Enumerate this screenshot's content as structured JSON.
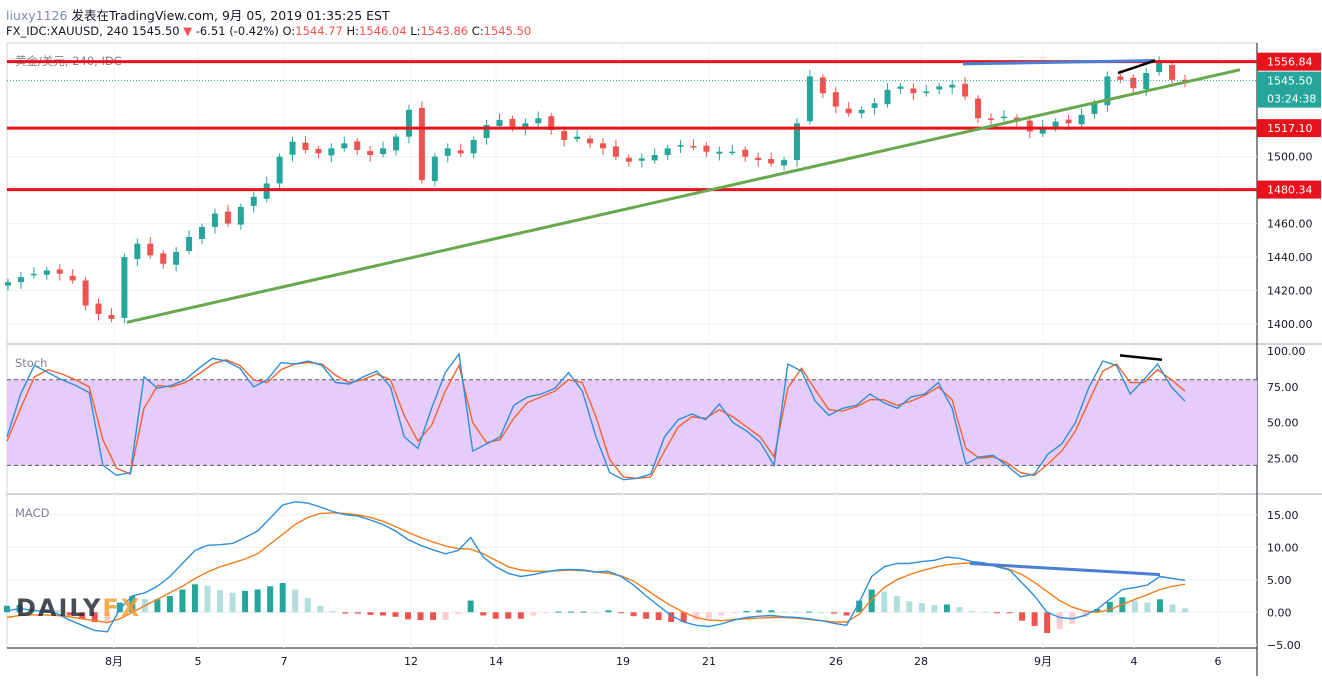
{
  "header": {
    "user": "liuxy1126",
    "published": "发表在TradingView.com, 9月 05, 2019 01:35:25 EST",
    "symbol_line": "FX_IDC:XAUUSD, 240",
    "last": "1545.50",
    "change_arrow": "▼",
    "change": "-6.51 (-0.42%)",
    "o_label": "O:",
    "o_value": "1544.77",
    "h_label": "H:",
    "h_value": "1546.04",
    "l_label": "L:",
    "l_value": "1543.86",
    "c_label": "C:",
    "c_value": "1545.50"
  },
  "watermark": {
    "left": "DAILY",
    "right": "FX"
  },
  "colors": {
    "up": "#26a69a",
    "down": "#ef5350",
    "level": "#e8121c",
    "trend": "#6aa84f",
    "blue_line": "#4a7fd6",
    "stoch_k": "#2f8fd8",
    "stoch_d": "#f4632e",
    "stoch_band": "#e6ccfa",
    "macd_line": "#2f8fd8",
    "signal_line": "#f07f1e"
  },
  "chart_data": [
    {
      "type": "candlestick",
      "title": "黄金/美元, 240, IDC",
      "ylim": [
        1388,
        1568
      ],
      "yticks": [
        "1400.00",
        "1420.00",
        "1440.00",
        "1460.00",
        "1480.00",
        "1500.00"
      ],
      "x_tick_labels": [
        "8月",
        "5",
        "7",
        "12",
        "14",
        "19",
        "21",
        "26",
        "28",
        "9月",
        "4",
        "6"
      ],
      "horizontal_levels": [
        {
          "label": "1556.84",
          "value": 1556.84
        },
        {
          "label": "1517.10",
          "value": 1517.1
        },
        {
          "label": "1480.34",
          "value": 1480.34
        }
      ],
      "last_price_label": "1545.50",
      "countdown_label": "03:24:38",
      "trendline": {
        "from": [
          "8月 1",
          1401
        ],
        "to": [
          "9月 5",
          1552
        ]
      },
      "close_path": [
        1425,
        1428,
        1430,
        1432,
        1430,
        1426,
        1411,
        1406,
        1403,
        1440,
        1448,
        1441,
        1436,
        1443,
        1452,
        1458,
        1466,
        1460,
        1470,
        1476,
        1484,
        1500,
        1509,
        1504,
        1502,
        1505,
        1508,
        1504,
        1501,
        1505,
        1512,
        1528,
        1486,
        1500,
        1505,
        1502,
        1510,
        1519,
        1522,
        1518,
        1520,
        1523,
        1516,
        1510,
        1512,
        1508,
        1505,
        1500,
        1497,
        1499,
        1501,
        1505,
        1507,
        1506,
        1503,
        1503,
        1503,
        1500,
        1498,
        1496,
        1498,
        1520,
        1548,
        1538,
        1530,
        1526,
        1528,
        1532,
        1540,
        1542,
        1538,
        1539,
        1542,
        1543,
        1536,
        1523,
        1522,
        1524,
        1521,
        1515,
        1518,
        1521,
        1520,
        1525,
        1532,
        1548,
        1546,
        1541,
        1550,
        1556,
        1546,
        1545.5
      ]
    },
    {
      "type": "line",
      "title": "Stoch",
      "ylim": [
        0,
        105
      ],
      "yticks": [
        "25.00",
        "50.00",
        "75.00",
        "100.00"
      ],
      "band": [
        20,
        80
      ],
      "series": [
        {
          "values": [
            40,
            70,
            90,
            85,
            80,
            76,
            71,
            20,
            13,
            15,
            82,
            74,
            76,
            80,
            88,
            95,
            93,
            88,
            75,
            80,
            92,
            91,
            93,
            90,
            78,
            77,
            82,
            86,
            75,
            40,
            32,
            60,
            85,
            98,
            30,
            35,
            40,
            62,
            68,
            70,
            74,
            85,
            72,
            40,
            15,
            10,
            11,
            14,
            40,
            52,
            56,
            52,
            63,
            50,
            44,
            36,
            20,
            91,
            86,
            65,
            55,
            60,
            62,
            70,
            64,
            60,
            68,
            70,
            78,
            60,
            21,
            26,
            27,
            20,
            12,
            14,
            28,
            35,
            50,
            75,
            93,
            90,
            70,
            80,
            91,
            75,
            65
          ]
        },
        {
          "values": [
            37,
            60,
            82,
            87,
            84,
            80,
            75,
            38,
            18,
            14,
            60,
            76,
            75,
            78,
            84,
            91,
            94,
            90,
            80,
            78,
            87,
            91,
            92,
            91,
            83,
            78,
            80,
            84,
            80,
            55,
            37,
            48,
            72,
            90,
            50,
            36,
            38,
            53,
            64,
            68,
            72,
            80,
            78,
            54,
            24,
            12,
            11,
            12,
            30,
            47,
            54,
            53,
            59,
            54,
            47,
            40,
            26,
            74,
            88,
            73,
            59,
            58,
            61,
            66,
            66,
            62,
            65,
            69,
            75,
            66,
            32,
            25,
            26,
            22,
            15,
            13,
            21,
            30,
            44,
            65,
            86,
            91,
            78,
            78,
            87,
            80,
            72
          ]
        }
      ]
    },
    {
      "type": "line",
      "title": "MACD",
      "ylim": [
        -5.5,
        18.2
      ],
      "yticks": [
        "−5.00",
        "0.00",
        "5.00",
        "10.00",
        "15.00"
      ],
      "series": [
        {
          "values": [
            0.2,
            0.6,
            0.3,
            0.1,
            -0.2,
            -1.2,
            -2.0,
            -2.8,
            -3.0,
            0.5,
            2.5,
            3.0,
            4.0,
            5.5,
            7.5,
            9.5,
            10.3,
            10.4,
            10.6,
            11.5,
            12.5,
            14.5,
            16.5,
            17.0,
            16.8,
            16.2,
            15.5,
            15.0,
            14.8,
            14.2,
            13.5,
            12.5,
            11.2,
            10.3,
            9.6,
            9.0,
            9.5,
            11.5,
            8.5,
            7.0,
            6.0,
            5.5,
            5.8,
            6.2,
            6.5,
            6.6,
            6.5,
            6.2,
            6.3,
            5.5,
            4.2,
            2.5,
            1.0,
            -0.5,
            -1.5,
            -2.0,
            -2.2,
            -1.8,
            -1.2,
            -0.8,
            -0.6,
            -0.5,
            -0.7,
            -0.8,
            -1.0,
            -1.3,
            -1.7,
            -2.0,
            1.5,
            5.5,
            7.0,
            7.5,
            7.5,
            7.8,
            8.0,
            8.5,
            8.3,
            7.8,
            7.6,
            7.0,
            6.5,
            4.5,
            2.5,
            0.0,
            -0.8,
            -1.0,
            -0.5,
            0.5,
            2.0,
            3.5,
            3.8,
            4.2,
            5.5,
            5.2,
            4.9
          ]
        },
        {
          "values": [
            -0.8,
            -0.5,
            -0.4,
            -0.4,
            -0.5,
            -0.7,
            -1.0,
            -1.3,
            -1.6,
            -1.0,
            0.0,
            1.0,
            2.0,
            3.0,
            4.0,
            5.2,
            6.2,
            7.0,
            7.6,
            8.2,
            9.0,
            10.5,
            12.0,
            13.5,
            14.6,
            15.2,
            15.3,
            15.2,
            15.0,
            14.6,
            14.0,
            13.2,
            12.3,
            11.5,
            10.8,
            10.2,
            9.8,
            9.7,
            9.0,
            8.0,
            7.0,
            6.5,
            6.3,
            6.3,
            6.4,
            6.5,
            6.4,
            6.2,
            6.0,
            5.6,
            4.8,
            3.5,
            2.2,
            1.0,
            0.0,
            -0.8,
            -1.2,
            -1.3,
            -1.1,
            -1.0,
            -0.9,
            -0.8,
            -0.8,
            -0.9,
            -1.1,
            -1.3,
            -1.5,
            -1.5,
            -0.3,
            2.0,
            3.8,
            5.0,
            5.8,
            6.4,
            6.9,
            7.3,
            7.5,
            7.6,
            7.5,
            7.1,
            6.6,
            5.8,
            4.6,
            3.2,
            1.8,
            0.8,
            0.2,
            0.0,
            0.4,
            1.2,
            2.0,
            2.7,
            3.5,
            4.0,
            4.3
          ]
        }
      ]
    }
  ]
}
